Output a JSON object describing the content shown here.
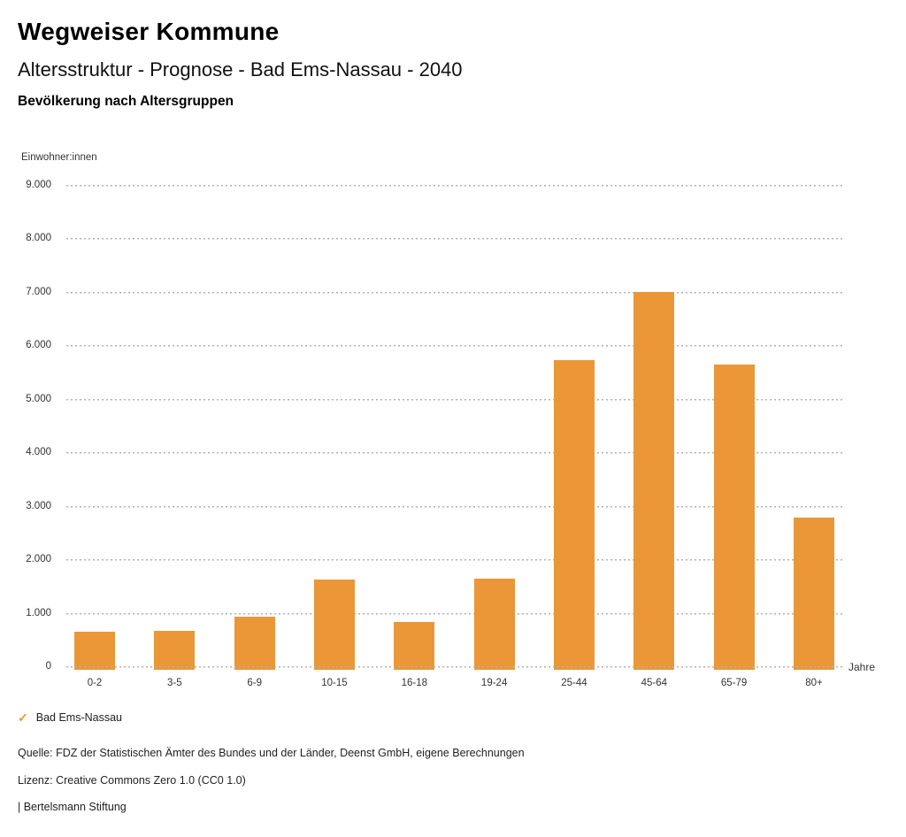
{
  "header": {
    "brand": "Wegweiser Kommune",
    "title": "Altersstruktur - Prognose - Bad Ems-Nassau - 2040",
    "subtitle": "Bevölkerung nach Altersgruppen"
  },
  "chart_data": {
    "type": "bar",
    "title": "Bevölkerung nach Altersgruppen",
    "ylabel": "Einwohner:innen",
    "xlabel": "Jahre",
    "categories": [
      "0-2",
      "3-5",
      "6-9",
      "10-15",
      "16-18",
      "19-24",
      "25-44",
      "45-64",
      "65-79",
      "80+"
    ],
    "values": [
      665,
      685,
      945,
      1645,
      850,
      1660,
      5745,
      7010,
      5660,
      2790
    ],
    "series": [
      {
        "name": "Bad Ems-Nassau",
        "values": [
          665,
          685,
          945,
          1645,
          850,
          1660,
          5745,
          7010,
          5660,
          2790
        ]
      }
    ],
    "ylim": [
      0,
      9000
    ],
    "ytick_interval": 1000,
    "ytick_labels": [
      "0",
      "1.000",
      "2.000",
      "3.000",
      "4.000",
      "5.000",
      "6.000",
      "7.000",
      "8.000",
      "9.000"
    ],
    "grid": "horizontal-dotted",
    "legend_position": "bottom-left",
    "bar_color": "#EB9737",
    "gridline_color": "#b2b2b2"
  },
  "legend": {
    "check_icon": "✓",
    "check_color": "#EB9737",
    "label": "Bad Ems-Nassau"
  },
  "footer": {
    "source": "Quelle: FDZ der Statistischen Ämter des Bundes und der Länder, Deenst GmbH, eigene Berechnungen",
    "license": "Lizenz: Creative Commons Zero 1.0 (CC0 1.0)",
    "attribution": "| Bertelsmann Stiftung"
  }
}
